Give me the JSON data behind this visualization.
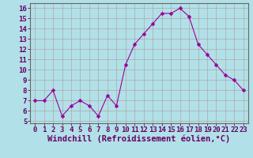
{
  "x": [
    0,
    1,
    2,
    3,
    4,
    5,
    6,
    7,
    8,
    9,
    10,
    11,
    12,
    13,
    14,
    15,
    16,
    17,
    18,
    19,
    20,
    21,
    22,
    23
  ],
  "y": [
    7.0,
    7.0,
    8.0,
    5.5,
    6.5,
    7.0,
    6.5,
    5.5,
    7.5,
    6.5,
    10.5,
    12.5,
    13.5,
    14.5,
    15.5,
    15.5,
    16.0,
    15.2,
    12.5,
    11.5,
    10.5,
    9.5,
    9.0,
    8.0
  ],
  "line_color": "#990099",
  "marker": "D",
  "marker_size": 2.5,
  "bg_color": "#b2e0e8",
  "grid_color": "#aaaaaa",
  "xlabel": "Windchill (Refroidissement éolien,°C)",
  "xlabel_color": "#660066",
  "xlabel_fontsize": 7.5,
  "ylabel_ticks": [
    5,
    6,
    7,
    8,
    9,
    10,
    11,
    12,
    13,
    14,
    15,
    16
  ],
  "xlim": [
    -0.5,
    23.5
  ],
  "ylim": [
    4.8,
    16.5
  ],
  "tick_fontsize": 6.5,
  "xtick_labels": [
    "0",
    "1",
    "2",
    "3",
    "4",
    "5",
    "6",
    "7",
    "8",
    "9",
    "10",
    "11",
    "12",
    "13",
    "14",
    "15",
    "16",
    "17",
    "18",
    "19",
    "20",
    "21",
    "22",
    "23"
  ]
}
